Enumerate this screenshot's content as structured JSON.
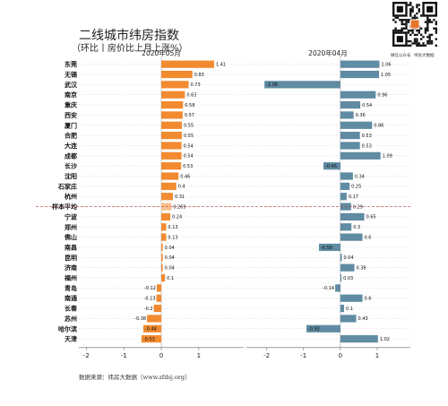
{
  "header": {
    "title": "二线城市纬房指数",
    "subtitle": "（环比丨房价比上月上涨%）"
  },
  "qr": {
    "caption_left": "微信公众号",
    "caption_right": "纬房大数据"
  },
  "source": "数据来源：纬房大数据（www.zfdsj.org）",
  "colors": {
    "left_bar": "#F28A30",
    "right_bar": "#5F8BA3",
    "highlight_bar": "#F9C08C",
    "avg_line": "#C04040",
    "grid": "#C8C8C8"
  },
  "chart_data": {
    "type": "bar",
    "orientation": "horizontal",
    "categories": [
      "东莞",
      "无锡",
      "武汉",
      "南京",
      "重庆",
      "西安",
      "厦门",
      "合肥",
      "大连",
      "成都",
      "长沙",
      "沈阳",
      "石家庄",
      "杭州",
      "样本平均",
      "宁波",
      "郑州",
      "佛山",
      "南昌",
      "昆明",
      "济南",
      "福州",
      "青岛",
      "南通",
      "长春",
      "苏州",
      "哈尔滨",
      "天津"
    ],
    "highlight_category": "样本平均",
    "series": [
      {
        "name": "2020年05月",
        "values": [
          1.41,
          0.83,
          0.73,
          0.63,
          0.58,
          0.57,
          0.55,
          0.55,
          0.54,
          0.54,
          0.53,
          0.46,
          0.4,
          0.31,
          0.269,
          0.24,
          0.13,
          0.13,
          0.04,
          0.04,
          0.04,
          0.1,
          -0.12,
          -0.13,
          -0.2,
          -0.38,
          -0.48,
          -0.53
        ],
        "labels": [
          "1.41",
          "0.83",
          "0.73",
          "0.63",
          "0.58",
          "0.57",
          "0.55",
          "0.55",
          "0.54",
          "0.54",
          "0.53",
          "0.46",
          "0.4",
          "0.31",
          "0.269",
          "0.24",
          "0.13",
          "0.13",
          "0.04",
          "0.04",
          "0.04",
          "0.1",
          "-0.12",
          "-0.13",
          "-0.2",
          "-0.38",
          "-0.48",
          "-0.53"
        ],
        "xlim": [
          -2.2,
          2.2
        ],
        "ticks": [
          "-2",
          "-1",
          "0",
          "1"
        ]
      },
      {
        "name": "2020年04月",
        "values": [
          1.06,
          1.05,
          -2.06,
          0.96,
          0.54,
          0.36,
          0.86,
          0.53,
          0.53,
          1.09,
          -0.46,
          0.34,
          0.25,
          0.17,
          0.29,
          0.65,
          0.3,
          0.6,
          -0.58,
          0.04,
          0.38,
          0.03,
          -0.14,
          0.6,
          0.1,
          0.43,
          -0.92,
          1.02
        ],
        "labels": [
          "1.06",
          "1.05",
          "-2.06",
          "0.96",
          "0.54",
          "0.36",
          "0.86",
          "0.53",
          "0.53",
          "1.09",
          "-0.46",
          "0.34",
          "0.25",
          "0.17",
          "0.29",
          "0.65",
          "0.3",
          "0.6",
          "-0.58",
          "0.04",
          "0.38",
          "0.03",
          "-0.14",
          "0.6",
          "0.1",
          "0.43",
          "-0.92",
          "1.02"
        ],
        "xlim": [
          -2.55,
          1.9
        ],
        "ticks": [
          "-2",
          "-1",
          "0",
          "1"
        ]
      }
    ]
  }
}
